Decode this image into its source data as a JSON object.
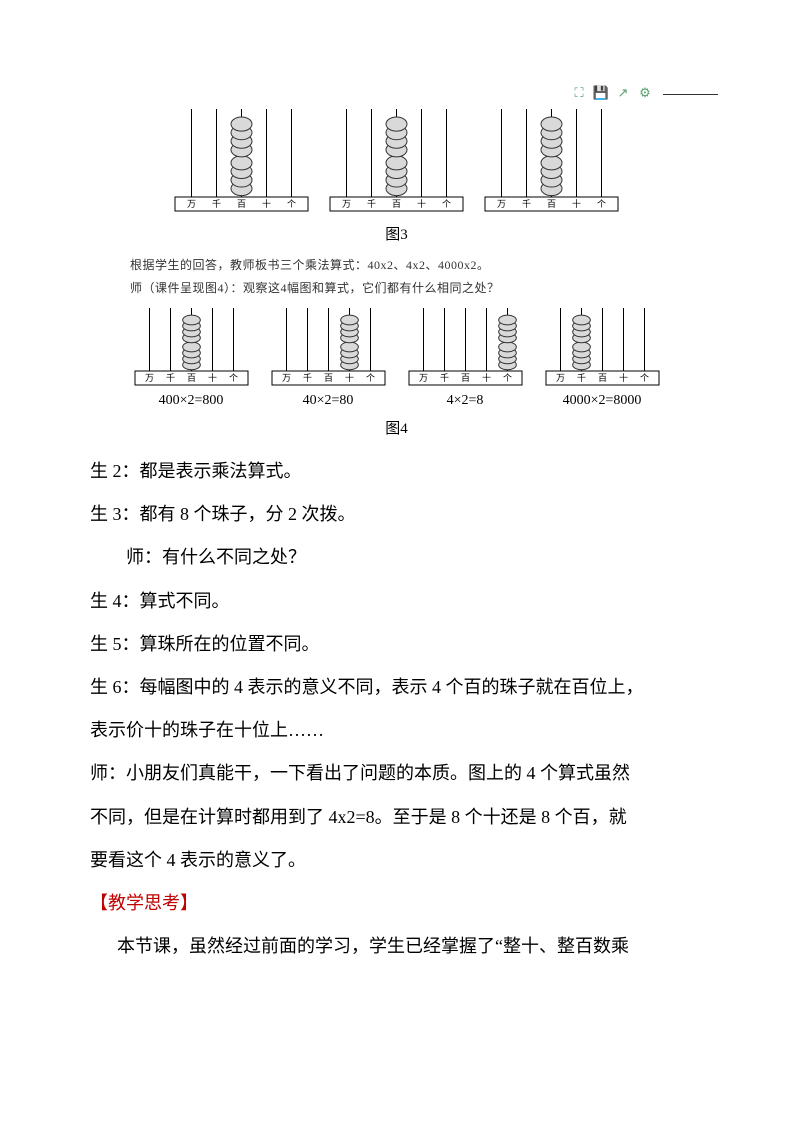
{
  "toolbar": {
    "icons": [
      "expand-icon",
      "save-icon",
      "export-icon",
      "settings-icon"
    ]
  },
  "fig3": {
    "abaci": [
      {
        "beadColumn": 2,
        "labels": [
          "万",
          "千",
          "百",
          "十",
          "个"
        ]
      },
      {
        "beadColumn": 2,
        "labels": [
          "万",
          "千",
          "百",
          "十",
          "个"
        ]
      },
      {
        "beadColumn": 2,
        "labels": [
          "万",
          "千",
          "百",
          "十",
          "个"
        ]
      }
    ],
    "caption": "图3"
  },
  "instr1": "根据学生的回答，教师板书三个乘法算式：40x2、4x2、4000x2。",
  "instr2": "师（课件呈现图4）：观察这4幅图和算式，它们都有什么相同之处？",
  "fig4": {
    "items": [
      {
        "beadColumn": 2,
        "labels": [
          "万",
          "千",
          "百",
          "十",
          "个"
        ],
        "eq": "400×2=800"
      },
      {
        "beadColumn": 3,
        "labels": [
          "万",
          "千",
          "百",
          "十",
          "个"
        ],
        "eq": "40×2=80"
      },
      {
        "beadColumn": 4,
        "labels": [
          "万",
          "千",
          "百",
          "十",
          "个"
        ],
        "eq": "4×2=8"
      },
      {
        "beadColumn": 1,
        "labels": [
          "万",
          "千",
          "百",
          "十",
          "个"
        ],
        "eq": "4000×2=8000"
      }
    ],
    "caption": "图4"
  },
  "lines": {
    "s2": "生 2：都是表示乘法算式。",
    "s3": "生 3：都有 8 个珠子，分 2 次拨。",
    "t1": "师：有什么不同之处？",
    "s4": "生 4：算式不同。",
    "s5": "生 5：算珠所在的位置不同。",
    "s6a": "生 6：每幅图中的 4 表示的意义不同，表示 4 个百的珠子就在百位上，",
    "s6b": "表示价十的珠子在十位上……",
    "t2a": "师：小朋友们真能干，一下看出了问题的本质。图上的 4 个算式虽然",
    "t2b": "不同，但是在计算时都用到了 4x2=8。至于是 8 个十还是 8 个百，就",
    "t2c": "要看这个 4 表示的意义了。",
    "think": "【教学思考】",
    "p1": "本节课，虽然经过前面的学习，学生已经掌握了“整十、整百数乘"
  },
  "style": {
    "beadFill": "#d9d9d9",
    "beadStroke": "#333333",
    "frameStroke": "#000000",
    "rodStroke": "#000000",
    "labelFont": 9
  }
}
